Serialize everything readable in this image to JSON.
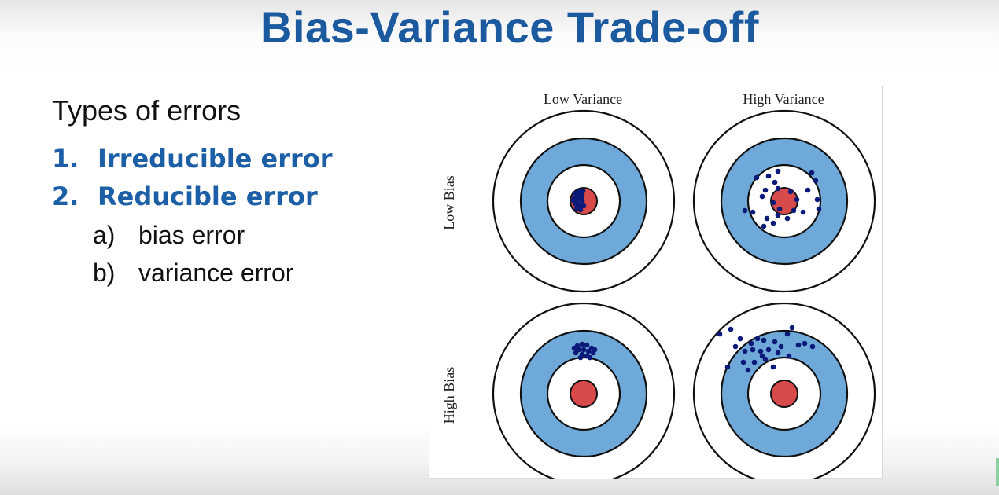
{
  "slide": {
    "title": "Bias-Variance Trade-off",
    "subheading": "Types of errors",
    "numbered": [
      {
        "num": "1.",
        "text": "Irreducible error"
      },
      {
        "num": "2.",
        "text": "Reducible error"
      }
    ],
    "lettered": [
      {
        "num": "a)",
        "text": "bias error"
      },
      {
        "num": "b)",
        "text": "variance error"
      }
    ]
  },
  "figure": {
    "columns": [
      "Low Variance",
      "High Variance"
    ],
    "rows": [
      "Low Bias",
      "High Bias"
    ],
    "colors": {
      "ring_outer": "#ffffff",
      "ring_blue": "#6fa9d9",
      "ring_inner": "#ffffff",
      "bullseye": "#d94a4a",
      "dots": "#0b1a78",
      "stroke": "#111111"
    }
  }
}
